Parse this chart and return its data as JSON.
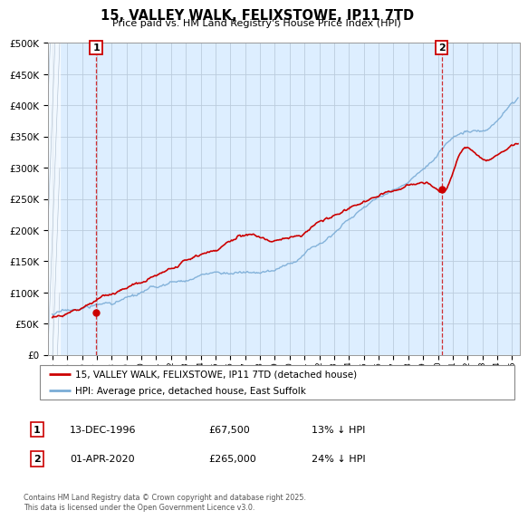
{
  "title": "15, VALLEY WALK, FELIXSTOWE, IP11 7TD",
  "subtitle": "Price paid vs. HM Land Registry's House Price Index (HPI)",
  "legend_line1": "15, VALLEY WALK, FELIXSTOWE, IP11 7TD (detached house)",
  "legend_line2": "HPI: Average price, detached house, East Suffolk",
  "annotation1_date": "13-DEC-1996",
  "annotation1_price": "£67,500",
  "annotation1_hpi": "13% ↓ HPI",
  "annotation2_date": "01-APR-2020",
  "annotation2_price": "£265,000",
  "annotation2_hpi": "24% ↓ HPI",
  "footnote": "Contains HM Land Registry data © Crown copyright and database right 2025.\nThis data is licensed under the Open Government Licence v3.0.",
  "hpi_color": "#7aacd6",
  "price_color": "#cc0000",
  "annotation_color": "#cc0000",
  "background_color": "#ffffff",
  "chart_bg_color": "#ddeeff",
  "grid_color": "#bbccdd",
  "ylim": [
    0,
    500000
  ],
  "yticks": [
    0,
    50000,
    100000,
    150000,
    200000,
    250000,
    300000,
    350000,
    400000,
    450000,
    500000
  ],
  "xlim_start": 1993.7,
  "xlim_end": 2025.5,
  "purchase1_x": 1996.95,
  "purchase1_y": 67500,
  "purchase2_x": 2020.25,
  "purchase2_y": 265000,
  "hatch_end": 1994.5
}
